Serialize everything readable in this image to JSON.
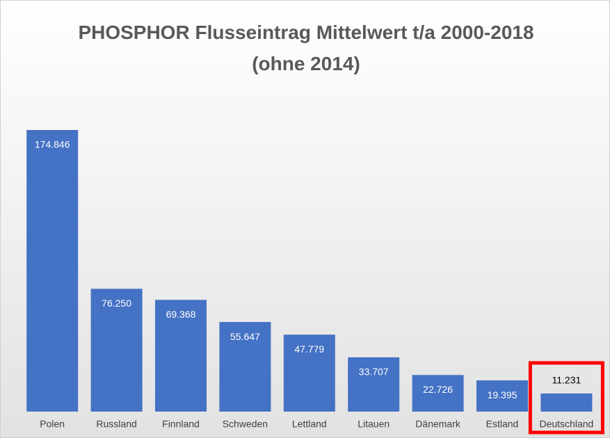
{
  "chart_data": {
    "type": "bar",
    "title": "PHOSPHOR Flusseintrag Mittelwert t/a 2000-2018 (ohne 2014)",
    "categories": [
      "Polen",
      "Russland",
      "Finnland",
      "Schweden",
      "Lettland",
      "Litauen",
      "Dänemark",
      "Estland",
      "Deutschland"
    ],
    "values": [
      174.846,
      76.25,
      69.368,
      55.647,
      47.779,
      33.707,
      22.726,
      19.395,
      11.231
    ],
    "value_labels": [
      "174.846",
      "76.250",
      "69.368",
      "55.647",
      "47.779",
      "33.707",
      "22.726",
      "19.395",
      "11.231"
    ],
    "color": "#4472c4",
    "highlight": "Deutschland",
    "highlight_color": "#ff0000"
  }
}
